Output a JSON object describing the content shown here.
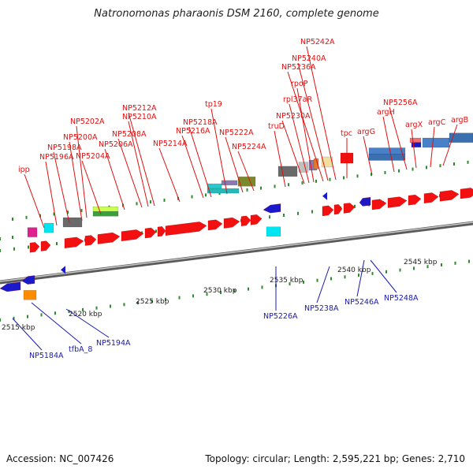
{
  "title": "Natronomonas pharaonis DSM 2160, complete genome",
  "footer": {
    "accession": "Accession: NC_007426",
    "summary": "Topology: circular; Length: 2,595,221 bp; Genes: 2,710"
  },
  "colors": {
    "forward_gene": "#f21010",
    "reverse_gene": "#1a1acc",
    "top_label": "#e01010",
    "bottom_label": "#1a1ab0",
    "backbone": "#808080",
    "tick": "#2e8b2e",
    "scale_text": "#222222"
  },
  "scale_labels": [
    "2515 kbp",
    "2520 kbp",
    "2525 kbp",
    "2530 kbp",
    "2535 kbp",
    "2540 kbp",
    "2545 kbp"
  ],
  "top_genes": [
    "ipp",
    "NP5196A",
    "NP5198A",
    "NP5200A",
    "NP5202A",
    "NP5204A",
    "NP5206A",
    "NP5208A",
    "NP5210A",
    "NP5212A",
    "NP5214A",
    "NP5216A",
    "NP5218A",
    "tp19",
    "NP5222A",
    "NP5224A",
    "truD",
    "NP5230A",
    "rpl37aR",
    "rpoP",
    "NP5236A",
    "NP5240A",
    "NP5242A",
    "tpc",
    "argG",
    "argH",
    "NP5256A",
    "argX",
    "argC",
    "argB"
  ],
  "bottom_genes": [
    "NP5184A",
    "tfbA_8",
    "NP5194A",
    "NP5226A",
    "NP5238A",
    "NP5246A",
    "NP5248A"
  ]
}
